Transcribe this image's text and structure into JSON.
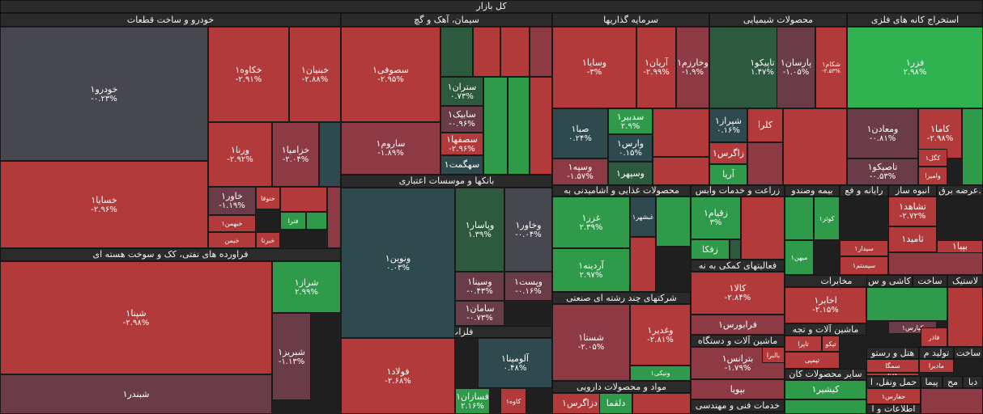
{
  "title": "کل بازار",
  "colors": {
    "red": "#b33a3a",
    "red_mid": "#8e3a45",
    "red_dim": "#6a3c48",
    "gray": "#474750",
    "teal": "#2f4a4e",
    "green_dim": "#2d5a3f",
    "green": "#2e9a4a",
    "green_bright": "#2fb350"
  },
  "sectors": [
    {
      "name": "خودرو و ساخت قطعات"
    },
    {
      "name": "سیمان، آهک و گچ"
    },
    {
      "name": "سرمایه گذاریها"
    },
    {
      "name": "محصولات شیمیایی"
    },
    {
      "name": "استخراج کانه های فلزی"
    },
    {
      "name": "فراورده های نفتی، کک و سوخت هسته ای"
    },
    {
      "name": "بانکها و موسسات اعتباری"
    },
    {
      "name": "محصولات غذایی و آشامیدنی به"
    },
    {
      "name": "زراعت و خدمات وابس"
    },
    {
      "name": "بیمه وصندو"
    },
    {
      "name": "رایانه و فع"
    },
    {
      "name": "انبوه ساز"
    },
    {
      "name": "عرضه برق."
    },
    {
      "name": "فعالیتهای کمکی به نه"
    },
    {
      "name": "مخابرات"
    },
    {
      "name": "کاشی و س"
    },
    {
      "name": "ساخت"
    },
    {
      "name": "لاستیک"
    },
    {
      "name": "شرکتهای چند رشته ای صنعتی"
    },
    {
      "name": "فلزات اساسی"
    },
    {
      "name": "ماشین آلات و دستگاه"
    },
    {
      "name": "ماشین آلات و تجه"
    },
    {
      "name": "هتل و رستو"
    },
    {
      "name": "تولید م"
    },
    {
      "name": "ساخت"
    },
    {
      "name": "سایر محصولات کان"
    },
    {
      "name": "مواد و محصولات دارویی"
    },
    {
      "name": "حمل ونقل، ا"
    },
    {
      "name": "پیما"
    },
    {
      "name": "مح"
    },
    {
      "name": "دبا"
    },
    {
      "name": "خدمات فنی و مهندسی"
    },
    {
      "name": "اطلاعات و ا"
    }
  ],
  "tiles": [
    {
      "name": "خودرو۱",
      "pct": "-۰.۲۳%",
      "c": "gray"
    },
    {
      "name": "خکاوه۱",
      "pct": "-۲.۹۱%",
      "c": "red"
    },
    {
      "name": "خبنیان۱",
      "pct": "-۲.۸۸%",
      "c": "red"
    },
    {
      "name": "ورنا۱",
      "pct": "-۲.۹۲%",
      "c": "red"
    },
    {
      "name": "خزامیا۱",
      "pct": "-۲.۰۴%",
      "c": "red_mid"
    },
    {
      "name": "",
      "pct": "",
      "c": "teal"
    },
    {
      "name": "خسایا۱",
      "pct": "-۲.۹۶%",
      "c": "red"
    },
    {
      "name": "خاور۱",
      "pct": "-۱.۱۹%",
      "c": "red_dim"
    },
    {
      "name": "خبهمن۱",
      "pct": "",
      "c": "red"
    },
    {
      "name": "خیمن",
      "pct": "",
      "c": "red"
    },
    {
      "name": "خنوفا",
      "pct": "",
      "c": "red"
    },
    {
      "name": "خبرنا",
      "pct": "",
      "c": "red"
    },
    {
      "name": "فنرا",
      "pct": "",
      "c": "green"
    },
    {
      "name": "",
      "pct": "",
      "c": "green"
    },
    {
      "name": "",
      "pct": "",
      "c": "red"
    },
    {
      "name": "",
      "pct": "",
      "c": "red_mid"
    },
    {
      "name": "سصوفی۱",
      "pct": "-۲.۹۵%",
      "c": "red"
    },
    {
      "name": "ساروم۱",
      "pct": "-۱.۸۹%",
      "c": "red_mid"
    },
    {
      "name": "",
      "pct": "",
      "c": "green_dim"
    },
    {
      "name": "",
      "pct": "",
      "c": "red"
    },
    {
      "name": "",
      "pct": "",
      "c": "red"
    },
    {
      "name": "",
      "pct": "",
      "c": "red_mid"
    },
    {
      "name": "ستران۱",
      "pct": "۰.۷۳%",
      "c": "green_dim"
    },
    {
      "name": "سابیک۱",
      "pct": "-۰.۹۶%",
      "c": "red_dim"
    },
    {
      "name": "سصفها۱",
      "pct": "-۲.۹۶%",
      "c": "red"
    },
    {
      "name": "سهگمت۱",
      "pct": "",
      "c": "teal"
    },
    {
      "name": "",
      "pct": "",
      "c": "green"
    },
    {
      "name": "",
      "pct": "",
      "c": "green"
    },
    {
      "name": "",
      "pct": "",
      "c": "red"
    },
    {
      "name": "وسایا۱",
      "pct": "-۳%",
      "c": "red"
    },
    {
      "name": "آریان۱",
      "pct": "-۲.۹۹%",
      "c": "red"
    },
    {
      "name": "وخارزم۱",
      "pct": "-۱.۹%",
      "c": "red_mid"
    },
    {
      "name": "صبا۱",
      "pct": "۰.۲۴%",
      "c": "teal"
    },
    {
      "name": "سدبیر۱",
      "pct": "۲.۹%",
      "c": "green"
    },
    {
      "name": "وارس۱",
      "pct": "۰.۱۵%",
      "c": "teal"
    },
    {
      "name": "وسپه۱",
      "pct": "-۱.۵۷%",
      "c": "red_mid"
    },
    {
      "name": "وسپهر۱",
      "pct": "",
      "c": "green_dim"
    },
    {
      "name": "",
      "pct": "",
      "c": "red"
    },
    {
      "name": "",
      "pct": "",
      "c": "red"
    },
    {
      "name": "تاپیکو۱",
      "pct": "۱.۴۷%",
      "c": "green_dim"
    },
    {
      "name": "پارسان۱",
      "pct": "-۱.۰۵%",
      "c": "red_dim"
    },
    {
      "name": "شکام۱",
      "pct": "-۲.۵۳%",
      "c": "red"
    },
    {
      "name": "شپراز۱",
      "pct": "۰.۱۶%",
      "c": "teal"
    },
    {
      "name": "کلرا",
      "pct": "",
      "c": "red"
    },
    {
      "name": "زاگرس۱",
      "pct": "",
      "c": "red"
    },
    {
      "name": "آریا",
      "pct": "",
      "c": "green"
    },
    {
      "name": "",
      "pct": "",
      "c": "red"
    },
    {
      "name": "",
      "pct": "",
      "c": "red_mid"
    },
    {
      "name": "فزر۱",
      "pct": "۲.۹۸%",
      "c": "green_bright"
    },
    {
      "name": "ومعادن۱",
      "pct": "-۰.۸۱%",
      "c": "red_dim"
    },
    {
      "name": "کاما۱",
      "pct": "-۲.۹۸%",
      "c": "red"
    },
    {
      "name": "تاصیکو۱",
      "pct": "-۰.۵۳%",
      "c": "red_dim"
    },
    {
      "name": "کگل۱",
      "pct": "",
      "c": "red"
    },
    {
      "name": "وامیرا",
      "pct": "",
      "c": "red"
    },
    {
      "name": "",
      "pct": "",
      "c": "green"
    },
    {
      "name": "شپنا۱",
      "pct": "-۲.۹۸%",
      "c": "red"
    },
    {
      "name": "شراز۱",
      "pct": "۲.۹۹%",
      "c": "green"
    },
    {
      "name": "شبریز۱",
      "pct": "-۱.۱۳%",
      "c": "red_dim"
    },
    {
      "name": "شبندر۱",
      "pct": "",
      "c": "red_dim"
    },
    {
      "name": "ونوین۱",
      "pct": "۰.۰۳%",
      "c": "teal"
    },
    {
      "name": "وپاسار۱",
      "pct": "۱.۳۹%",
      "c": "green_dim"
    },
    {
      "name": "وخاور۱",
      "pct": "-۰.۰۴%",
      "c": "gray"
    },
    {
      "name": "وسینا۱",
      "pct": "-۰.۴۳%",
      "c": "red_dim"
    },
    {
      "name": "وپست۱",
      "pct": "-۰.۱۶%",
      "c": "red_dim"
    },
    {
      "name": "سامان۱",
      "pct": "-۰.۷۳%",
      "c": "red_dim"
    },
    {
      "name": "غزر۱",
      "pct": "۲.۳۹%",
      "c": "green"
    },
    {
      "name": "غبشهر۱",
      "pct": "",
      "c": "teal"
    },
    {
      "name": "آردینه۱",
      "pct": "۲.۹۷%",
      "c": "green"
    },
    {
      "name": "",
      "pct": "",
      "c": "green"
    },
    {
      "name": "",
      "pct": "",
      "c": "red"
    },
    {
      "name": "زقیام۱",
      "pct": "۳%",
      "c": "green"
    },
    {
      "name": "زفکا",
      "pct": "",
      "c": "green"
    },
    {
      "name": "",
      "pct": "",
      "c": "red"
    },
    {
      "name": "",
      "pct": "",
      "c": "green_dim"
    },
    {
      "name": "کوثر۱",
      "pct": "",
      "c": "green"
    },
    {
      "name": "میهن۱",
      "pct": "",
      "c": "green"
    },
    {
      "name": "سیدار۱",
      "pct": "",
      "c": "red"
    },
    {
      "name": "سیستم۱",
      "pct": "",
      "c": "red"
    },
    {
      "name": "تشاهد۱",
      "pct": "-۲.۷۲%",
      "c": "red"
    },
    {
      "name": "ثامید۱",
      "pct": "",
      "c": "red"
    },
    {
      "name": "بپیا۱",
      "pct": "-۲.۸۱%",
      "c": "red"
    },
    {
      "name": "",
      "pct": "",
      "c": "green"
    },
    {
      "name": "",
      "pct": "",
      "c": "red_mid"
    },
    {
      "name": "کالا۱",
      "pct": "-۲.۸۴%",
      "c": "red"
    },
    {
      "name": "فرابورس۱",
      "pct": "",
      "c": "red_mid"
    },
    {
      "name": "اخابر۱",
      "pct": "-۲.۱۵%",
      "c": "red"
    },
    {
      "name": "کپارس۱",
      "pct": "",
      "c": "red_dim"
    },
    {
      "name": "فاذر",
      "pct": "",
      "c": "red"
    },
    {
      "name": "",
      "pct": "",
      "c": "green"
    },
    {
      "name": "",
      "pct": "",
      "c": "red"
    },
    {
      "name": "شستا۱",
      "pct": "-۲.۰۵%",
      "c": "red_mid"
    },
    {
      "name": "وغدیر۱",
      "pct": "-۲.۸۱%",
      "c": "red"
    },
    {
      "name": "ونیکی۱",
      "pct": "",
      "c": "green"
    },
    {
      "name": "فولاد۱",
      "pct": "-۲.۶۸%",
      "c": "red"
    },
    {
      "name": "آلومینا۱",
      "pct": "۰.۴۸%",
      "c": "teal"
    },
    {
      "name": "فسازان۱",
      "pct": "۲.۱۶%",
      "c": "green"
    },
    {
      "name": "کاوه۱",
      "pct": "",
      "c": "red"
    },
    {
      "name": "تیکو",
      "pct": "",
      "c": "red"
    },
    {
      "name": "تاپرا",
      "pct": "",
      "c": "red"
    },
    {
      "name": "تپمپی",
      "pct": "",
      "c": "red"
    },
    {
      "name": "بترانس۱",
      "pct": "-۱.۷۹%",
      "c": "red_mid"
    },
    {
      "name": "بالبرا",
      "pct": "",
      "c": "red"
    },
    {
      "name": "بپویا",
      "pct": "",
      "c": "red_mid"
    },
    {
      "name": "سمگا",
      "pct": "",
      "c": "red"
    },
    {
      "name": "گدنا",
      "pct": "",
      "c": "red"
    },
    {
      "name": "مادیرا",
      "pct": "",
      "c": "red"
    },
    {
      "name": "کیشیر۱",
      "pct": "",
      "c": "green"
    },
    {
      "name": "دزاگرس۱",
      "pct": "",
      "c": "red"
    },
    {
      "name": "دلقما",
      "pct": "",
      "c": "green"
    },
    {
      "name": "حفارس۱",
      "pct": "",
      "c": "red"
    },
    {
      "name": "",
      "pct": "",
      "c": "red"
    },
    {
      "name": "",
      "pct": "",
      "c": "green"
    },
    {
      "name": "",
      "pct": "",
      "c": "red_mid"
    }
  ]
}
